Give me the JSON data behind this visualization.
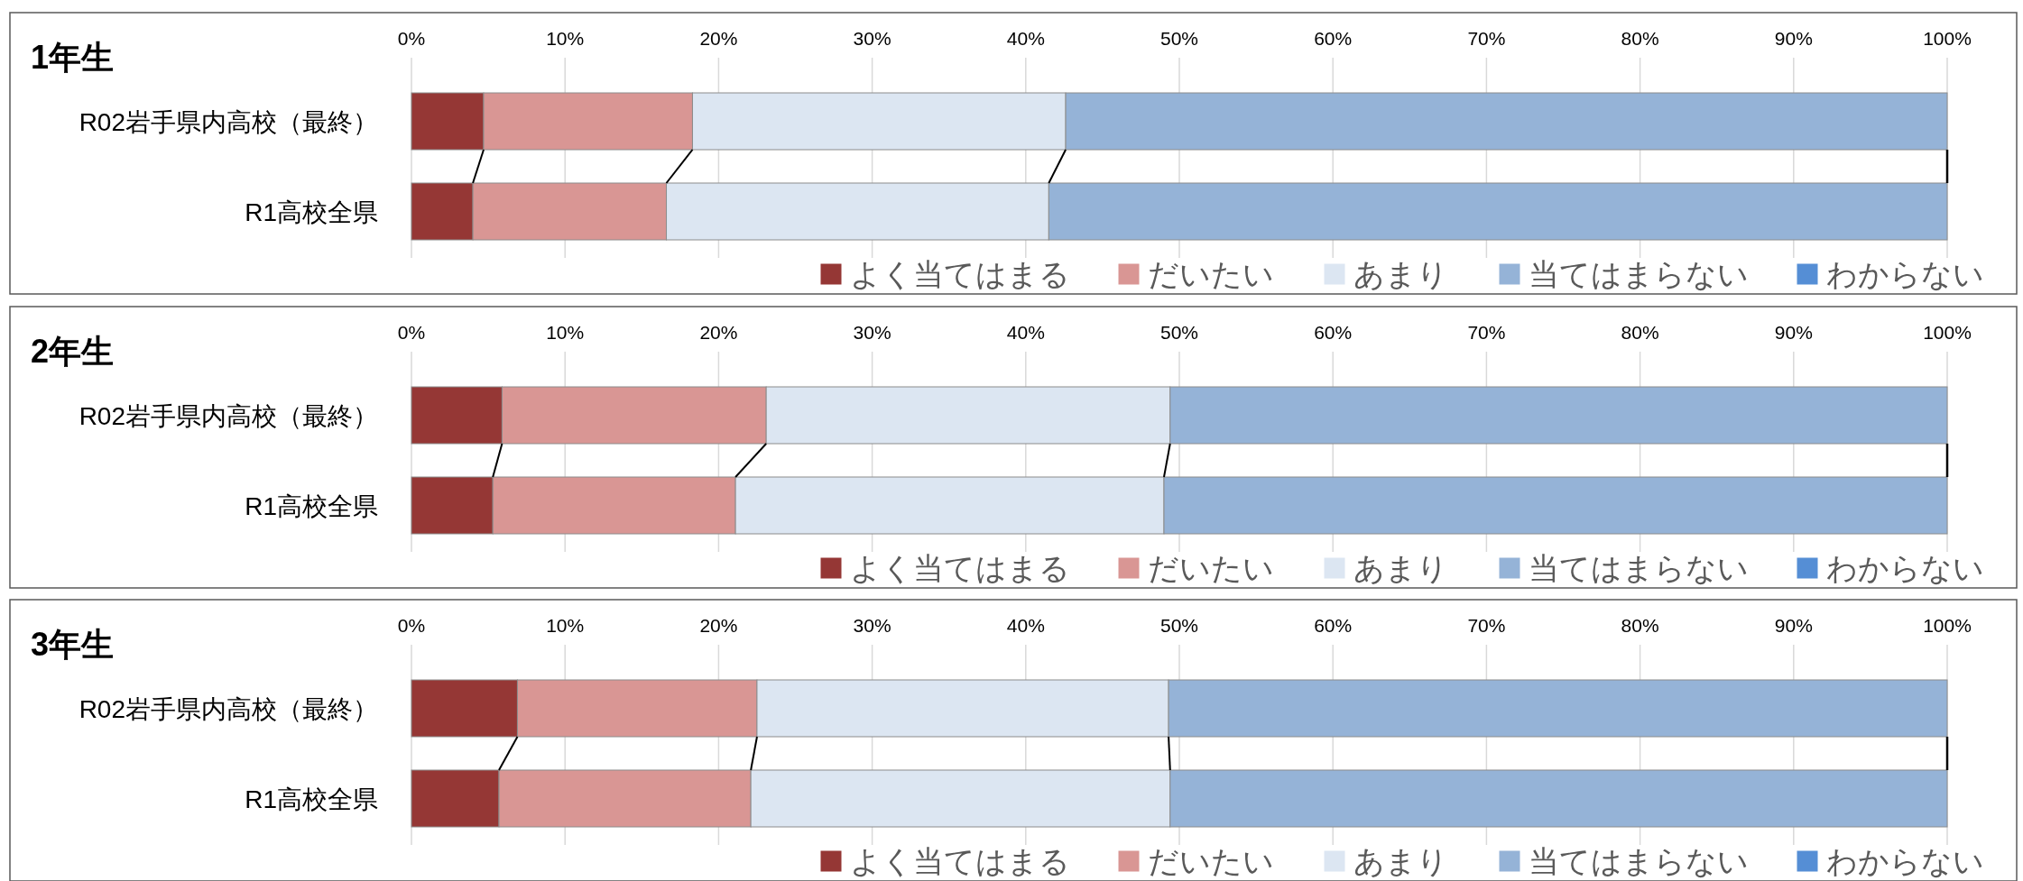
{
  "chart_data": [
    {
      "type": "bar",
      "title": "1年生",
      "orientation": "horizontal",
      "stacked": true,
      "categories": [
        "R02岩手県内高校（最終）",
        "R1高校全県"
      ],
      "xlim": [
        0,
        100
      ],
      "xticks": [
        {
          "value": 0,
          "label": "0%"
        },
        {
          "value": 10,
          "label": "10%"
        },
        {
          "value": 20,
          "label": "20%"
        },
        {
          "value": 30,
          "label": "30%"
        },
        {
          "value": 40,
          "label": "40%"
        },
        {
          "value": 50,
          "label": "50%"
        },
        {
          "value": 60,
          "label": "60%"
        },
        {
          "value": 70,
          "label": "70%"
        },
        {
          "value": 80,
          "label": "80%"
        },
        {
          "value": 90,
          "label": "90%"
        },
        {
          "value": 100,
          "label": "100%"
        }
      ],
      "grid": "x",
      "legend": "bottom",
      "series": [
        {
          "name": "よく当てはまる",
          "color": "#953735",
          "values": [
            4.7,
            4.0
          ]
        },
        {
          "name": "だいたい",
          "color": "#d99694",
          "values": [
            13.6,
            12.6
          ]
        },
        {
          "name": "あまり",
          "color": "#dce6f2",
          "values": [
            24.3,
            24.9
          ]
        },
        {
          "name": "当てはまらない",
          "color": "#95b3d7",
          "values": [
            57.4,
            58.5
          ]
        },
        {
          "name": "わからない",
          "color": "#558ed5",
          "values": [
            0,
            0
          ]
        }
      ]
    },
    {
      "type": "bar",
      "title": "2年生",
      "orientation": "horizontal",
      "stacked": true,
      "categories": [
        "R02岩手県内高校（最終）",
        "R1高校全県"
      ],
      "xlim": [
        0,
        100
      ],
      "xticks": [
        {
          "value": 0,
          "label": "0%"
        },
        {
          "value": 10,
          "label": "10%"
        },
        {
          "value": 20,
          "label": "20%"
        },
        {
          "value": 30,
          "label": "30%"
        },
        {
          "value": 40,
          "label": "40%"
        },
        {
          "value": 50,
          "label": "50%"
        },
        {
          "value": 60,
          "label": "60%"
        },
        {
          "value": 70,
          "label": "70%"
        },
        {
          "value": 80,
          "label": "80%"
        },
        {
          "value": 90,
          "label": "90%"
        },
        {
          "value": 100,
          "label": "100%"
        }
      ],
      "grid": "x",
      "legend": "bottom",
      "series": [
        {
          "name": "よく当てはまる",
          "color": "#953735",
          "values": [
            5.9,
            5.3
          ]
        },
        {
          "name": "だいたい",
          "color": "#d99694",
          "values": [
            17.2,
            15.8
          ]
        },
        {
          "name": "あまり",
          "color": "#dce6f2",
          "values": [
            26.3,
            27.9
          ]
        },
        {
          "name": "当てはまらない",
          "color": "#95b3d7",
          "values": [
            50.6,
            51.0
          ]
        },
        {
          "name": "わからない",
          "color": "#558ed5",
          "values": [
            0,
            0
          ]
        }
      ]
    },
    {
      "type": "bar",
      "title": "3年生",
      "orientation": "horizontal",
      "stacked": true,
      "categories": [
        "R02岩手県内高校（最終）",
        "R1高校全県"
      ],
      "xlim": [
        0,
        100
      ],
      "xticks": [
        {
          "value": 0,
          "label": "0%"
        },
        {
          "value": 10,
          "label": "10%"
        },
        {
          "value": 20,
          "label": "20%"
        },
        {
          "value": 30,
          "label": "30%"
        },
        {
          "value": 40,
          "label": "40%"
        },
        {
          "value": 50,
          "label": "50%"
        },
        {
          "value": 60,
          "label": "60%"
        },
        {
          "value": 70,
          "label": "70%"
        },
        {
          "value": 80,
          "label": "80%"
        },
        {
          "value": 90,
          "label": "90%"
        },
        {
          "value": 100,
          "label": "100%"
        }
      ],
      "grid": "x",
      "legend": "bottom",
      "series": [
        {
          "name": "よく当てはまる",
          "color": "#953735",
          "values": [
            6.9,
            5.7
          ]
        },
        {
          "name": "だいたい",
          "color": "#d99694",
          "values": [
            15.6,
            16.4
          ]
        },
        {
          "name": "あまり",
          "color": "#dce6f2",
          "values": [
            26.8,
            27.3
          ]
        },
        {
          "name": "当てはまらない",
          "color": "#95b3d7",
          "values": [
            50.7,
            50.6
          ]
        },
        {
          "name": "わからない",
          "color": "#558ed5",
          "values": [
            0,
            0
          ]
        }
      ]
    }
  ]
}
